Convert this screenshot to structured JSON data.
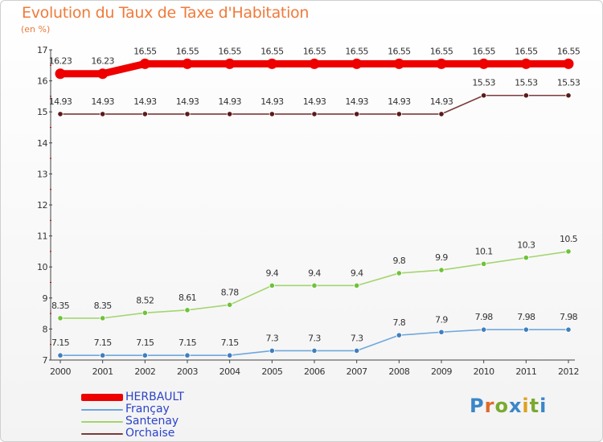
{
  "chart_data": {
    "type": "line",
    "title": "Evolution du Taux de Taxe d'Habitation",
    "unit_label": "(en %)",
    "x": [
      "2000",
      "2001",
      "2002",
      "2003",
      "2004",
      "2005",
      "2006",
      "2007",
      "2008",
      "2009",
      "2010",
      "2011",
      "2012"
    ],
    "ylim": [
      7,
      17
    ],
    "yticks": [
      7,
      8,
      9,
      10,
      11,
      12,
      13,
      14,
      15,
      16,
      17
    ],
    "grid": false,
    "legend_position": "bottom-left",
    "series": [
      {
        "name": "HERBAULT",
        "color": "#ee0000",
        "emphasis": "thick",
        "values": [
          16.23,
          16.23,
          16.55,
          16.55,
          16.55,
          16.55,
          16.55,
          16.55,
          16.55,
          16.55,
          16.55,
          16.55,
          16.55
        ],
        "labels": [
          "16.23",
          "16.23",
          "16.55",
          "16.55",
          "16.55",
          "16.55",
          "16.55",
          "16.55",
          "16.55",
          "16.55",
          "16.55",
          "16.55",
          "16.55"
        ]
      },
      {
        "name": "Françay",
        "color": "#6fa8dc",
        "marker_color": "#3f7fbf",
        "values": [
          7.15,
          7.15,
          7.15,
          7.15,
          7.15,
          7.3,
          7.3,
          7.3,
          7.8,
          7.9,
          7.98,
          7.98,
          7.98
        ],
        "labels": [
          "7.15",
          "7.15",
          "7.15",
          "7.15",
          "7.15",
          "7.3",
          "7.3",
          "7.3",
          "7.8",
          "7.9",
          "7.98",
          "7.98",
          "7.98"
        ]
      },
      {
        "name": "Santenay",
        "color": "#a4d56f",
        "marker_color": "#6fc23a",
        "values": [
          8.35,
          8.35,
          8.52,
          8.61,
          8.78,
          9.4,
          9.4,
          9.4,
          9.8,
          9.9,
          10.1,
          10.3,
          10.5
        ],
        "labels": [
          "8.35",
          "8.35",
          "8.52",
          "8.61",
          "8.78",
          "9.4",
          "9.4",
          "9.4",
          "9.8",
          "9.9",
          "10.1",
          "10.3",
          "10.5"
        ]
      },
      {
        "name": "Orchaise",
        "color": "#7a3a3a",
        "marker_color": "#5a1a1a",
        "values": [
          14.93,
          14.93,
          14.93,
          14.93,
          14.93,
          14.93,
          14.93,
          14.93,
          14.93,
          14.93,
          15.53,
          15.53,
          15.53
        ],
        "labels": [
          "14.93",
          "14.93",
          "14.93",
          "14.93",
          "14.93",
          "14.93",
          "14.93",
          "14.93",
          "14.93",
          "14.93",
          "15.53",
          "15.53",
          "15.53"
        ]
      }
    ]
  },
  "brand": [
    "P",
    "r",
    "o",
    "x",
    "i",
    "t",
    "i"
  ],
  "colors": {
    "title": "#f07a3a",
    "axis": "#444444",
    "tick_red": "#cc0000",
    "legend_text": "#2b43c9"
  }
}
